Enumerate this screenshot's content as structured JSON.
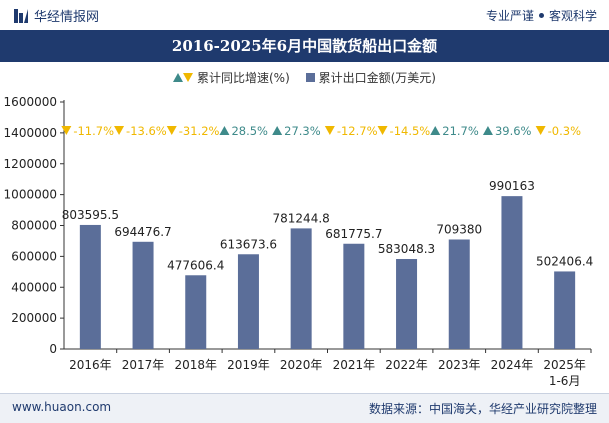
{
  "header": {
    "brand": "华经情报网",
    "tagline_1": "专业严谨",
    "tagline_2": "客观科学"
  },
  "footer": {
    "website": "www.huaon.com",
    "source": "数据来源：中国海关，华经产业研究院整理"
  },
  "colors": {
    "bar": "#5b6e99",
    "growth_up": "#3e8a8a",
    "growth_down": "#f0b800",
    "header_bg": "#1f3a6e"
  },
  "chart_data": {
    "type": "bar",
    "title": "2016-2025年6月中国散货船出口金额",
    "categories": [
      "2016年",
      "2017年",
      "2018年",
      "2019年",
      "2020年",
      "2021年",
      "2022年",
      "2023年",
      "2024年",
      "2025年\n1-6月"
    ],
    "series": [
      {
        "name": "累计出口金额(万美元)",
        "values": [
          803595.5,
          694476.7,
          477606.4,
          613673.6,
          781244.8,
          681775.7,
          583048.3,
          709380,
          990163,
          502406.4
        ],
        "labels": [
          "803595.5",
          "694476.7",
          "477606.4",
          "613673.6",
          "781244.8",
          "681775.7",
          "583048.3",
          "709380",
          "990163",
          "502406.4"
        ]
      },
      {
        "name": "累计同比增速(%)",
        "values": [
          -11.7,
          -13.6,
          -31.2,
          28.5,
          27.3,
          -12.7,
          -14.5,
          21.7,
          39.6,
          -0.3
        ],
        "labels": [
          "-11.7%",
          "-13.6%",
          "-31.2%",
          "28.5%",
          "27.3%",
          "-12.7%",
          "-14.5%",
          "21.7%",
          "39.6%",
          "-0.3%"
        ]
      }
    ],
    "ylim": [
      0,
      1600000
    ],
    "yticks": [
      0,
      200000,
      400000,
      600000,
      800000,
      1000000,
      1200000,
      1400000,
      1600000
    ],
    "ytick_labels": [
      "0",
      "200000",
      "400000",
      "600000",
      "800000",
      "1000000",
      "1200000",
      "1400000",
      "1600000"
    ],
    "xlabel": "",
    "ylabel": "",
    "grid": false,
    "legend_position": "top"
  }
}
